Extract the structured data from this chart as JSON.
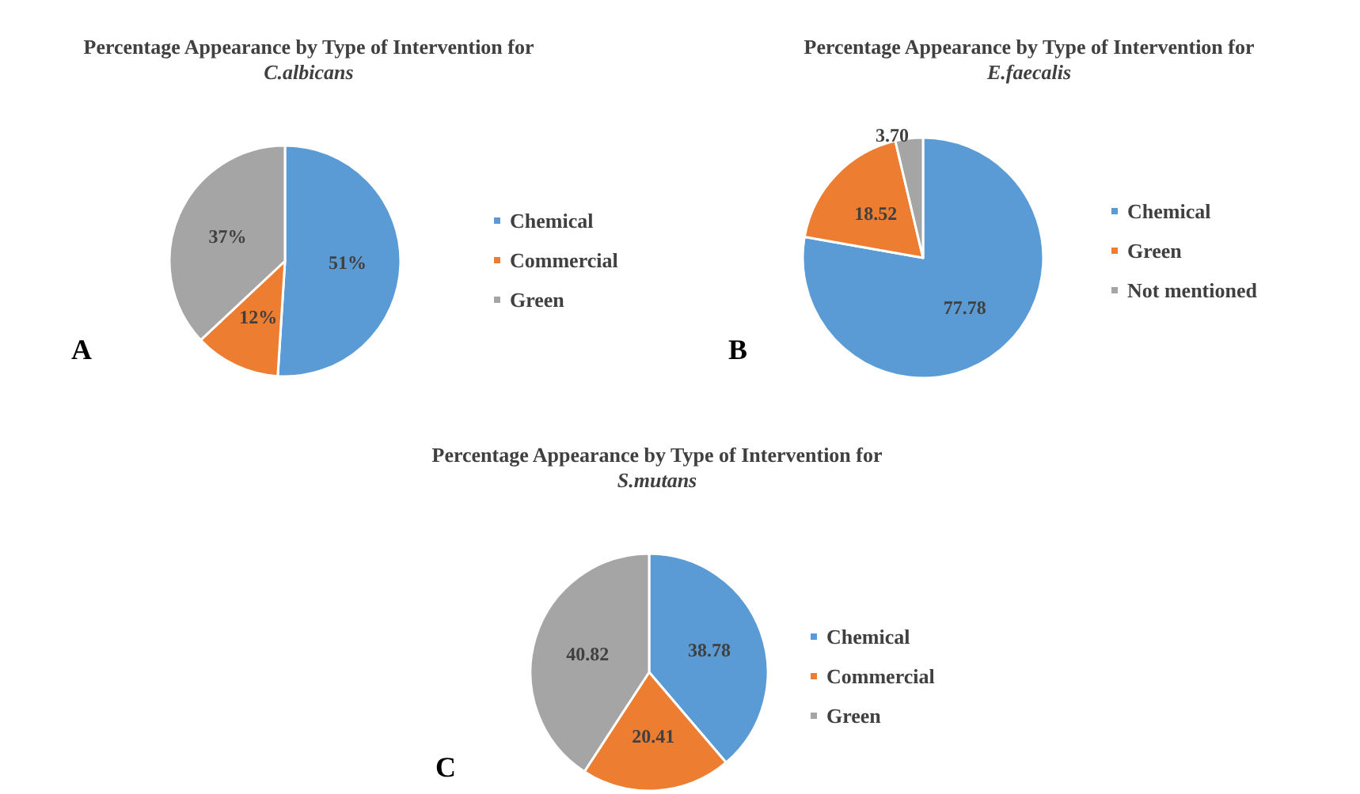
{
  "chart_data": [
    {
      "type": "pie",
      "title": "Percentage Appearance by Type of Intervention for",
      "subtitle": "C.albicans",
      "categories": [
        "Chemical",
        "Commercial",
        "Green"
      ],
      "values": [
        51,
        12,
        37
      ],
      "colors": [
        "#5b9bd5",
        "#ed7d31",
        "#a5a5a5"
      ],
      "value_labels": [
        "51%",
        "12%",
        "37%"
      ],
      "legend": "right",
      "annotations": [
        "A"
      ]
    },
    {
      "type": "pie",
      "title": "Percentage Appearance by Type of Intervention for",
      "subtitle": "E.faecalis",
      "categories": [
        "Chemical",
        "Green",
        "Not mentioned"
      ],
      "values": [
        77.78,
        18.52,
        3.7
      ],
      "colors": [
        "#5b9bd5",
        "#ed7d31",
        "#a5a5a5"
      ],
      "value_labels": [
        "77.78",
        "18.52",
        "3.70"
      ],
      "legend": "right",
      "annotations": [
        "B"
      ]
    },
    {
      "type": "pie",
      "title": "Percentage Appearance by Type of Intervention for",
      "subtitle": "S.mutans",
      "categories": [
        "Chemical",
        "Commercial",
        "Green"
      ],
      "values": [
        38.78,
        20.41,
        40.82
      ],
      "colors": [
        "#5b9bd5",
        "#ed7d31",
        "#a5a5a5"
      ],
      "value_labels": [
        "38.78",
        "20.41",
        "40.82"
      ],
      "legend": "right",
      "annotations": [
        "C"
      ]
    }
  ]
}
